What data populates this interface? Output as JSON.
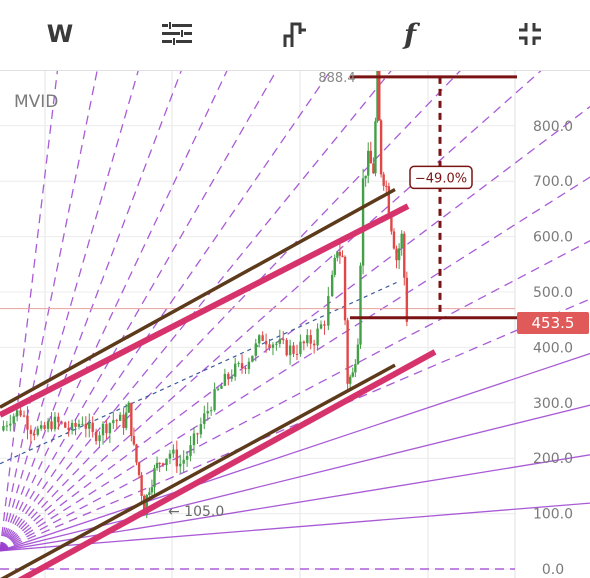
{
  "toolbar": {
    "interval_label": "W",
    "buttons": [
      "interval-button",
      "indicator-settings-icon",
      "chart-type-icon",
      "function-button",
      "fullscreen-icon"
    ],
    "function_label": "f"
  },
  "ticker": "MVID",
  "current_price_label": "453.5",
  "colors": {
    "accent_red": "#e05a5a",
    "magenta_line": "#d6336c",
    "brown_line": "#5d3a1a",
    "measure_dark_red": "#7a1414",
    "fan_purple": "#9b3fcf",
    "candle_up": "#43a047",
    "candle_down": "#e04848"
  },
  "chart_data": {
    "type": "candlestick",
    "symbol": "MVID",
    "interval": "W",
    "ylim": [
      0,
      950
    ],
    "y_ticks": [
      0,
      100,
      200,
      300,
      400,
      500,
      600,
      700,
      800
    ],
    "y_tick_labels": [
      "0.0",
      "100.0",
      "200.0",
      "300.0",
      "400.0",
      "500.0",
      "600.0",
      "700.0",
      "800.0"
    ],
    "last_price": 453.5,
    "annotations": {
      "high_label": "888.4",
      "high_value": 888.4,
      "low_label": "105.0",
      "low_value": 105.0,
      "change_label": "−49.0%",
      "change_value": -49.0
    },
    "price_path": [
      [
        0,
        250
      ],
      [
        0.02,
        275
      ],
      [
        0.04,
        285
      ],
      [
        0.06,
        255
      ],
      [
        0.08,
        245
      ],
      [
        0.1,
        265
      ],
      [
        0.12,
        260
      ],
      [
        0.14,
        250
      ],
      [
        0.16,
        270
      ],
      [
        0.18,
        240
      ],
      [
        0.2,
        255
      ],
      [
        0.22,
        270
      ],
      [
        0.24,
        265
      ],
      [
        0.25,
        290
      ],
      [
        0.26,
        215
      ],
      [
        0.27,
        170
      ],
      [
        0.28,
        110
      ],
      [
        0.29,
        150
      ],
      [
        0.3,
        175
      ],
      [
        0.31,
        195
      ],
      [
        0.33,
        210
      ],
      [
        0.35,
        190
      ],
      [
        0.37,
        215
      ],
      [
        0.39,
        260
      ],
      [
        0.41,
        300
      ],
      [
        0.43,
        330
      ],
      [
        0.45,
        355
      ],
      [
        0.47,
        365
      ],
      [
        0.49,
        390
      ],
      [
        0.51,
        420
      ],
      [
        0.53,
        410
      ],
      [
        0.55,
        400
      ],
      [
        0.57,
        395
      ],
      [
        0.59,
        405
      ],
      [
        0.61,
        415
      ],
      [
        0.63,
        450
      ],
      [
        0.645,
        520
      ],
      [
        0.655,
        580
      ],
      [
        0.665,
        560
      ],
      [
        0.675,
        340
      ],
      [
        0.685,
        350
      ],
      [
        0.695,
        420
      ],
      [
        0.705,
        700
      ],
      [
        0.715,
        740
      ],
      [
        0.725,
        720
      ],
      [
        0.733,
        888.4
      ],
      [
        0.74,
        720
      ],
      [
        0.75,
        690
      ],
      [
        0.76,
        620
      ],
      [
        0.77,
        560
      ],
      [
        0.78,
        600
      ],
      [
        0.79,
        453.5
      ]
    ]
  }
}
